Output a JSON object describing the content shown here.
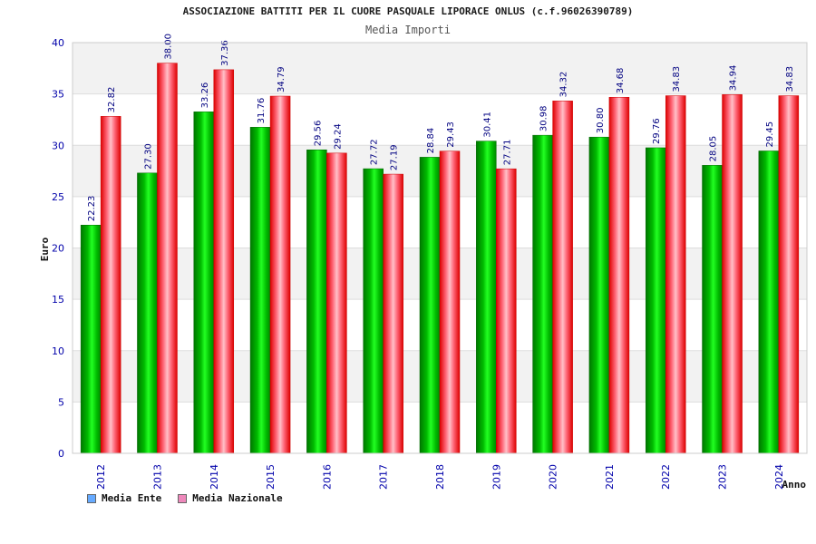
{
  "chart_data": {
    "type": "bar",
    "title": "ASSOCIAZIONE BATTITI PER IL CUORE PASQUALE LIPORACE ONLUS (c.f.96026390789)",
    "subtitle": "Media Importi",
    "xlabel": "Anno",
    "ylabel": "Euro",
    "ylim": [
      0,
      40
    ],
    "yticks": [
      0,
      5,
      10,
      15,
      20,
      25,
      30,
      35,
      40
    ],
    "categories": [
      "2012",
      "2013",
      "2014",
      "2015",
      "2016",
      "2017",
      "2018",
      "2019",
      "2020",
      "2021",
      "2022",
      "2023",
      "2024"
    ],
    "series": [
      {
        "name": "Media Ente",
        "values": [
          22.23,
          27.3,
          33.26,
          31.76,
          29.56,
          27.72,
          28.84,
          30.41,
          30.98,
          30.8,
          29.76,
          28.05,
          29.45
        ],
        "labels": [
          "22.23",
          "27.30",
          "33.26",
          "31.76",
          "29.56",
          "27.72",
          "28.84",
          "30.41",
          "30.98",
          "30.80",
          "29.76",
          "28.05",
          "29.45"
        ]
      },
      {
        "name": "Media Nazionale",
        "values": [
          32.82,
          38.0,
          37.36,
          34.79,
          29.24,
          27.19,
          29.43,
          27.71,
          34.32,
          34.68,
          34.83,
          34.94,
          34.83
        ],
        "labels": [
          "32.82",
          "38.00",
          "37.36",
          "34.79",
          "29.24",
          "27.19",
          "29.43",
          "27.71",
          "34.32",
          "34.68",
          "34.83",
          "34.94",
          "34.83"
        ]
      }
    ],
    "legend_position": "bottom-left",
    "grid": true
  },
  "colors": {
    "ente": "#00cc00",
    "nazionale": "#ee1122",
    "legend_ente": "#66aaff",
    "legend_nazionale": "#ee88bb",
    "axis_text": "#0000aa",
    "band": "#f2f2f2"
  }
}
